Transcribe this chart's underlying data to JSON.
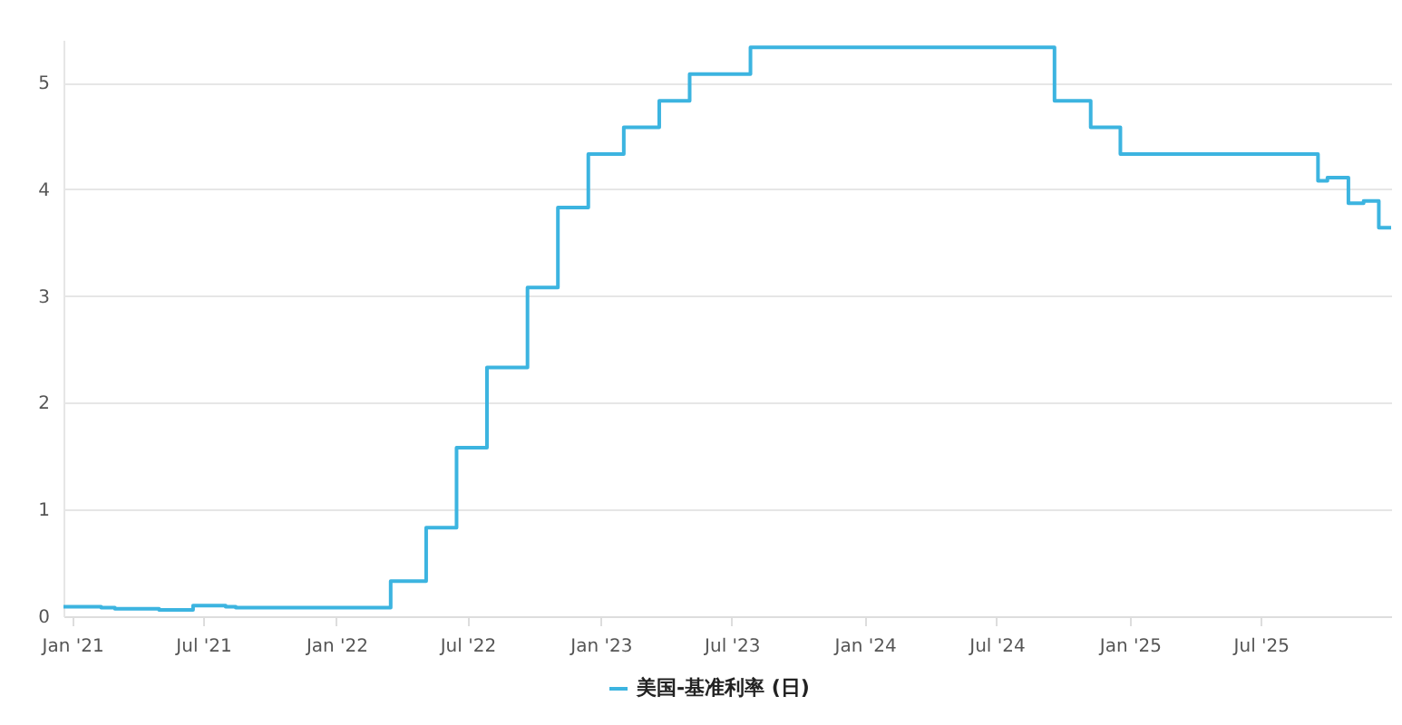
{
  "chart_data": {
    "type": "step",
    "x": [
      "2020-12-20",
      "2021-02-10",
      "2021-03-01",
      "2021-05-01",
      "2021-06-17",
      "2021-08-01",
      "2021-08-15",
      "2022-03-17",
      "2022-05-05",
      "2022-06-16",
      "2022-07-28",
      "2022-09-22",
      "2022-11-03",
      "2022-12-15",
      "2023-02-02",
      "2023-03-23",
      "2023-05-04",
      "2023-07-27",
      "2024-09-19",
      "2024-11-08",
      "2024-12-19",
      "2025-09-18",
      "2025-10-01",
      "2025-10-30",
      "2025-11-20",
      "2025-12-11",
      "2025-12-28"
    ],
    "series": [
      {
        "name": "美国-基准利率 (日)",
        "color": "#3cb4e0",
        "values": [
          0.09,
          0.08,
          0.07,
          0.06,
          0.1,
          0.09,
          0.08,
          0.33,
          0.83,
          1.58,
          2.33,
          3.08,
          3.83,
          4.33,
          4.58,
          4.83,
          5.08,
          5.33,
          4.83,
          4.58,
          4.33,
          4.08,
          4.11,
          3.87,
          3.89,
          3.64,
          3.64
        ]
      }
    ],
    "xlim": [
      "2020-12-20",
      "2025-12-28"
    ],
    "xticks": [
      {
        "value": "2021-01-01",
        "label": "Jan '21"
      },
      {
        "value": "2021-07-01",
        "label": "Jul '21"
      },
      {
        "value": "2022-01-01",
        "label": "Jan '22"
      },
      {
        "value": "2022-07-01",
        "label": "Jul '22"
      },
      {
        "value": "2023-01-01",
        "label": "Jan '23"
      },
      {
        "value": "2023-07-01",
        "label": "Jul '23"
      },
      {
        "value": "2024-01-01",
        "label": "Jan '24"
      },
      {
        "value": "2024-07-01",
        "label": "Jul '24"
      },
      {
        "value": "2025-01-01",
        "label": "Jan '25"
      },
      {
        "value": "2025-07-01",
        "label": "Jul '25"
      }
    ],
    "ylim": [
      0,
      5.4
    ],
    "yticks": [
      0,
      1,
      2,
      3,
      4,
      5
    ],
    "grid": "y",
    "legend": "bottom"
  }
}
